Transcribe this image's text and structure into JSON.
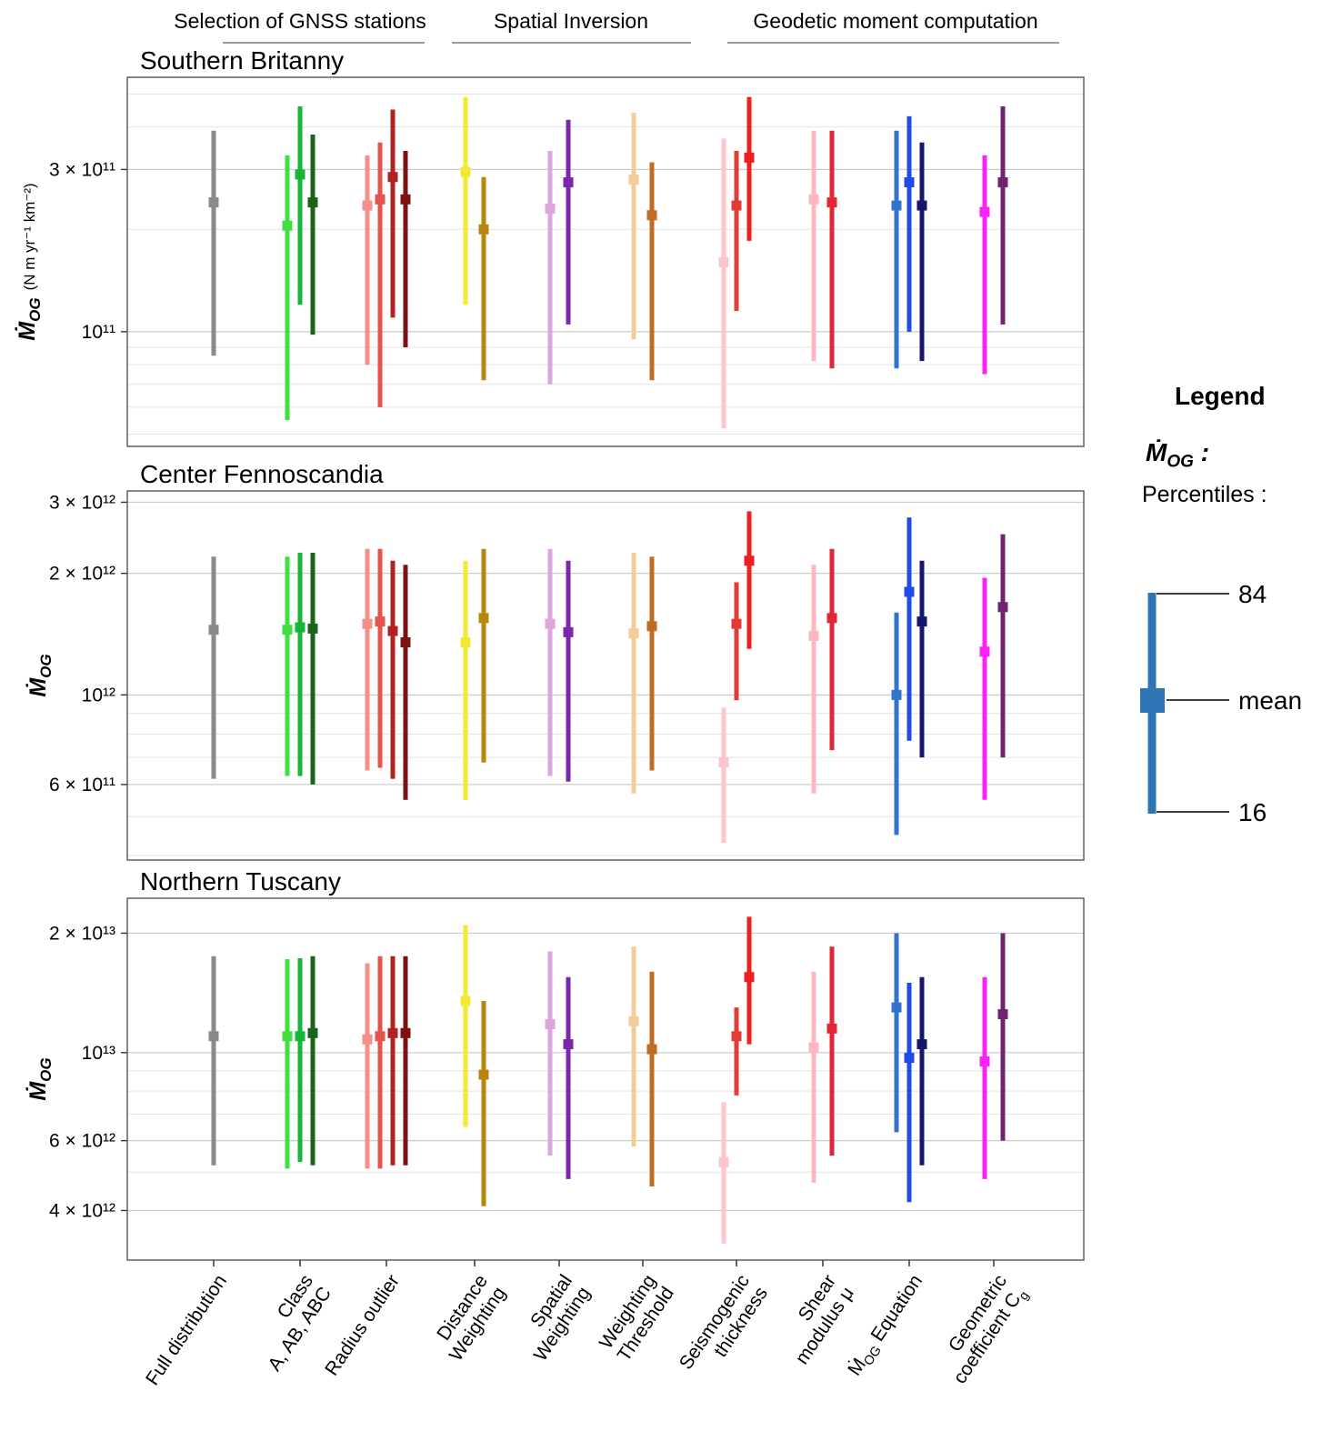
{
  "legend": {
    "title": "Legend",
    "symbol": "Ṁ_OG :",
    "subtitle": "Percentiles :",
    "p84": "84",
    "mean": "mean",
    "p16": "16",
    "color": "#2e75b6"
  },
  "chart_data": {
    "type": "errorbar",
    "percentile_low": 16,
    "percentile_high": 84,
    "groups": [
      {
        "label": "Selection of GNSS stations"
      },
      {
        "label": "Spatial Inversion"
      },
      {
        "label": "Geodetic moment computation"
      }
    ],
    "categories": [
      {
        "label": "Full distribution",
        "group": 0,
        "colors": [
          "#8a8a8a"
        ]
      },
      {
        "label": "Class\nA, AB, ABC",
        "group": 0,
        "colors": [
          "#3fe03f",
          "#17b53a",
          "#1c641c"
        ]
      },
      {
        "label": "Radius outlier",
        "group": 0,
        "colors": [
          "#f59089",
          "#e4534d",
          "#b22222",
          "#7c1212"
        ]
      },
      {
        "label": "Distance\nWeighting",
        "group": 1,
        "colors": [
          "#f2e835",
          "#b8860b"
        ]
      },
      {
        "label": "Spatial\nWeighting",
        "group": 1,
        "colors": [
          "#dda4dd",
          "#7a28a8"
        ]
      },
      {
        "label": "Weighting\nThreshold",
        "group": 1,
        "colors": [
          "#f2cd97",
          "#bf6c24"
        ]
      },
      {
        "label": "Seismogenic\nthickness",
        "group": 2,
        "colors": [
          "#ffc4ce",
          "#e23d35",
          "#ed1f1f"
        ]
      },
      {
        "label": "Shear\nmodulus μ",
        "group": 2,
        "colors": [
          "#ffb5c2",
          "#e32636"
        ]
      },
      {
        "label": "Ṁ_OG Equation",
        "group": 2,
        "colors": [
          "#3473cd",
          "#2148e8",
          "#16166b"
        ]
      },
      {
        "label": "Geometric\ncoefficient C_g",
        "group": 2,
        "colors": [
          "#f923f9",
          "#702470"
        ]
      }
    ],
    "panels": [
      {
        "title": "Southern Britanny",
        "ylabel": "Ṁ_OG",
        "ylabel_units": "(N m yr⁻¹ km⁻²)",
        "ylim": [
          46000000000.0,
          560000000000.0
        ],
        "yticks": [
          {
            "v": 300000000000.0,
            "label": "3 × 10¹¹"
          },
          {
            "v": 100000000000.0,
            "label": "10¹¹"
          }
        ],
        "grid": [
          50000000000.0,
          60000000000.0,
          70000000000.0,
          80000000000.0,
          90000000000.0,
          200000000000.0,
          400000000000.0,
          500000000000.0
        ],
        "values": [
          [
            [
              85000000000.0,
              240000000000.0,
              390000000000.0
            ]
          ],
          [
            [
              55000000000.0,
              205000000000.0,
              330000000000.0
            ],
            [
              120000000000.0,
              290000000000.0,
              460000000000.0
            ],
            [
              98000000000.0,
              240000000000.0,
              380000000000.0
            ]
          ],
          [
            [
              80000000000.0,
              235000000000.0,
              330000000000.0
            ],
            [
              60000000000.0,
              245000000000.0,
              360000000000.0
            ],
            [
              110000000000.0,
              285000000000.0,
              450000000000.0
            ],
            [
              90000000000.0,
              245000000000.0,
              340000000000.0
            ]
          ],
          [
            [
              120000000000.0,
              295000000000.0,
              490000000000.0
            ],
            [
              72000000000.0,
              200000000000.0,
              285000000000.0
            ]
          ],
          [
            [
              70000000000.0,
              230000000000.0,
              340000000000.0
            ],
            [
              105000000000.0,
              275000000000.0,
              420000000000.0
            ]
          ],
          [
            [
              95000000000.0,
              280000000000.0,
              440000000000.0
            ],
            [
              72000000000.0,
              220000000000.0,
              315000000000.0
            ]
          ],
          [
            [
              52000000000.0,
              160000000000.0,
              370000000000.0
            ],
            [
              115000000000.0,
              235000000000.0,
              340000000000.0
            ],
            [
              185000000000.0,
              325000000000.0,
              490000000000.0
            ]
          ],
          [
            [
              82000000000.0,
              245000000000.0,
              390000000000.0
            ],
            [
              78000000000.0,
              240000000000.0,
              390000000000.0
            ]
          ],
          [
            [
              78000000000.0,
              235000000000.0,
              390000000000.0
            ],
            [
              100000000000.0,
              275000000000.0,
              430000000000.0
            ],
            [
              82000000000.0,
              235000000000.0,
              360000000000.0
            ]
          ],
          [
            [
              75000000000.0,
              225000000000.0,
              330000000000.0
            ],
            [
              105000000000.0,
              275000000000.0,
              460000000000.0
            ]
          ]
        ]
      },
      {
        "title": "Center Fennoscandia",
        "ylabel": "Ṁ_OG",
        "ylabel_units": "",
        "ylim": [
          390000000000.0,
          3200000000000.0
        ],
        "yticks": [
          {
            "v": 3000000000000.0,
            "label": "3 × 10¹²"
          },
          {
            "v": 2000000000000.0,
            "label": "2 × 10¹²"
          },
          {
            "v": 1000000000000.0,
            "label": "10¹²"
          },
          {
            "v": 600000000000.0,
            "label": "6 × 10¹¹"
          }
        ],
        "grid": [
          400000000000.0,
          500000000000.0,
          700000000000.0,
          800000000000.0,
          900000000000.0
        ],
        "values": [
          [
            [
              620000000000.0,
              1450000000000.0,
              2200000000000.0
            ]
          ],
          [
            [
              630000000000.0,
              1450000000000.0,
              2200000000000.0
            ],
            [
              630000000000.0,
              1470000000000.0,
              2250000000000.0
            ],
            [
              600000000000.0,
              1460000000000.0,
              2250000000000.0
            ]
          ],
          [
            [
              650000000000.0,
              1500000000000.0,
              2300000000000.0
            ],
            [
              660000000000.0,
              1520000000000.0,
              2300000000000.0
            ],
            [
              620000000000.0,
              1440000000000.0,
              2150000000000.0
            ],
            [
              550000000000.0,
              1350000000000.0,
              2100000000000.0
            ]
          ],
          [
            [
              550000000000.0,
              1350000000000.0,
              2150000000000.0
            ],
            [
              680000000000.0,
              1550000000000.0,
              2300000000000.0
            ]
          ],
          [
            [
              630000000000.0,
              1500000000000.0,
              2300000000000.0
            ],
            [
              610000000000.0,
              1430000000000.0,
              2150000000000.0
            ]
          ],
          [
            [
              570000000000.0,
              1420000000000.0,
              2250000000000.0
            ],
            [
              650000000000.0,
              1480000000000.0,
              2200000000000.0
            ]
          ],
          [
            [
              430000000000.0,
              680000000000.0,
              930000000000.0
            ],
            [
              970000000000.0,
              1500000000000.0,
              1900000000000.0
            ],
            [
              1300000000000.0,
              2150000000000.0,
              2850000000000.0
            ]
          ],
          [
            [
              570000000000.0,
              1400000000000.0,
              2100000000000.0
            ],
            [
              730000000000.0,
              1550000000000.0,
              2300000000000.0
            ]
          ],
          [
            [
              450000000000.0,
              1000000000000.0,
              1600000000000.0
            ],
            [
              770000000000.0,
              1800000000000.0,
              2750000000000.0
            ],
            [
              700000000000.0,
              1520000000000.0,
              2150000000000.0
            ]
          ],
          [
            [
              550000000000.0,
              1280000000000.0,
              1950000000000.0
            ],
            [
              700000000000.0,
              1650000000000.0,
              2500000000000.0
            ]
          ]
        ]
      },
      {
        "title": "Northern Tuscany",
        "ylabel": "Ṁ_OG",
        "ylabel_units": "",
        "ylim": [
          3000000000000.0,
          24500000000000.0
        ],
        "yticks": [
          {
            "v": 20000000000000.0,
            "label": "2 × 10¹³"
          },
          {
            "v": 10000000000000.0,
            "label": "10¹³"
          },
          {
            "v": 6000000000000.0,
            "label": "6 × 10¹²"
          },
          {
            "v": 4000000000000.0,
            "label": "4 × 10¹²"
          }
        ],
        "grid": [
          5000000000000.0,
          7000000000000.0,
          8000000000000.0,
          9000000000000.0
        ],
        "values": [
          [
            [
              5200000000000.0,
              11000000000000.0,
              17500000000000.0
            ]
          ],
          [
            [
              5100000000000.0,
              11000000000000.0,
              17200000000000.0
            ],
            [
              5300000000000.0,
              11000000000000.0,
              17300000000000.0
            ],
            [
              5200000000000.0,
              11200000000000.0,
              17500000000000.0
            ]
          ],
          [
            [
              5100000000000.0,
              10800000000000.0,
              16800000000000.0
            ],
            [
              5100000000000.0,
              11000000000000.0,
              17500000000000.0
            ],
            [
              5200000000000.0,
              11200000000000.0,
              17500000000000.0
            ],
            [
              5200000000000.0,
              11200000000000.0,
              17500000000000.0
            ]
          ],
          [
            [
              6500000000000.0,
              13500000000000.0,
              21000000000000.0
            ],
            [
              4100000000000.0,
              8800000000000.0,
              13500000000000.0
            ]
          ],
          [
            [
              5500000000000.0,
              11800000000000.0,
              18000000000000.0
            ],
            [
              4800000000000.0,
              10500000000000.0,
              15500000000000.0
            ]
          ],
          [
            [
              5800000000000.0,
              12000000000000.0,
              18500000000000.0
            ],
            [
              4600000000000.0,
              10200000000000.0,
              16000000000000.0
            ]
          ],
          [
            [
              3300000000000.0,
              5300000000000.0,
              7500000000000.0
            ],
            [
              7800000000000.0,
              11000000000000.0,
              13000000000000.0
            ],
            [
              10500000000000.0,
              15500000000000.0,
              22000000000000.0
            ]
          ],
          [
            [
              4700000000000.0,
              10300000000000.0,
              16000000000000.0
            ],
            [
              5500000000000.0,
              11500000000000.0,
              18500000000000.0
            ]
          ],
          [
            [
              6300000000000.0,
              13000000000000.0,
              20000000000000.0
            ],
            [
              4200000000000.0,
              9700000000000.0,
              15000000000000.0
            ],
            [
              5200000000000.0,
              10500000000000.0,
              15500000000000.0
            ]
          ],
          [
            [
              4800000000000.0,
              9500000000000.0,
              15500000000000.0
            ],
            [
              6000000000000.0,
              12500000000000.0,
              20000000000000.0
            ]
          ]
        ]
      }
    ]
  }
}
